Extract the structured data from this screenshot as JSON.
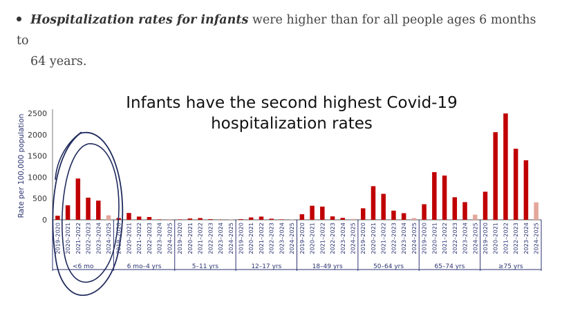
{
  "bullet": {
    "bold_text": "Hospitalization rates for infants",
    "rest_line1": " were higher than for all people ages 6 months to",
    "rest_line2": "64 years."
  },
  "chart_data": {
    "type": "bar",
    "title_lines": [
      "Infants have the second highest Covid-19",
      "hospitalization rates"
    ],
    "ylabel": "Rate per 100,000 population",
    "ylim": [
      0,
      2600
    ],
    "yticks": [
      0,
      500,
      1000,
      1500,
      2000,
      2500
    ],
    "seasons": [
      "2019–2020",
      "2020–2021",
      "2021–2022",
      "2022–2023",
      "2023–2024",
      "2024–2025"
    ],
    "groups": [
      {
        "label": "<6 mo",
        "values": [
          95,
          340,
          970,
          520,
          450,
          105
        ]
      },
      {
        "label": "6 mo–4 yrs",
        "values": [
          40,
          160,
          75,
          65,
          10,
          15
        ]
      },
      {
        "label": "5–11 yrs",
        "values": [
          10,
          30,
          40,
          15,
          5,
          5
        ]
      },
      {
        "label": "12–17 yrs",
        "values": [
          15,
          55,
          75,
          25,
          10,
          5
        ]
      },
      {
        "label": "18–49 yrs",
        "values": [
          130,
          330,
          310,
          80,
          45,
          20
        ]
      },
      {
        "label": "50–64 yrs",
        "values": [
          270,
          790,
          610,
          215,
          155,
          40
        ]
      },
      {
        "label": "65–74 yrs",
        "values": [
          365,
          1120,
          1040,
          530,
          415,
          120
        ]
      },
      {
        "label": "≥75 yrs",
        "values": [
          660,
          2060,
          2500,
          1670,
          1400,
          410
        ]
      }
    ],
    "bar_color": "#c00000",
    "partial_season_color": "#e3a69b",
    "annotation_color": "#1f2a5c"
  }
}
